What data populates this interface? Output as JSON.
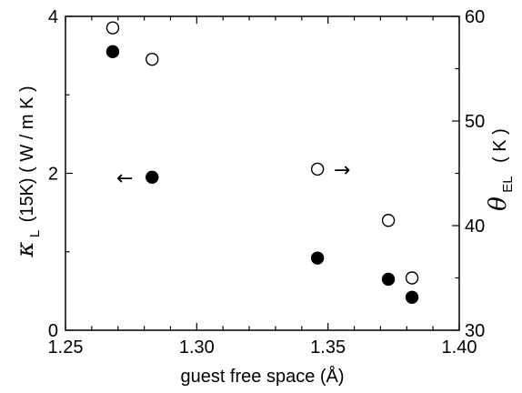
{
  "chart_data": {
    "type": "scatter",
    "x_label": "guest free space (Å)",
    "x_range": [
      1.25,
      1.4
    ],
    "x_ticks": [
      "1.25",
      "1.30",
      "1.35",
      "1.40"
    ],
    "y_left": {
      "symbol": "κ",
      "subscript": "L",
      "label_rest": "(15K) ( W / m K )",
      "range": [
        0,
        4
      ],
      "ticks": [
        "0",
        "2",
        "4"
      ]
    },
    "y_right": {
      "symbol": "θ",
      "subscript": "EL",
      "label_rest": "( K )",
      "range": [
        30,
        60
      ],
      "ticks": [
        "30",
        "40",
        "50",
        "60"
      ]
    },
    "series": [
      {
        "marker": "filled-circle",
        "axis": "left",
        "points": [
          {
            "x": 1.268,
            "y": 3.55
          },
          {
            "x": 1.283,
            "y": 1.95
          },
          {
            "x": 1.346,
            "y": 0.92
          },
          {
            "x": 1.373,
            "y": 0.65
          },
          {
            "x": 1.382,
            "y": 0.42
          }
        ]
      },
      {
        "marker": "open-circle",
        "axis": "right",
        "points": [
          {
            "x": 1.268,
            "y": 58.9
          },
          {
            "x": 1.283,
            "y": 55.9
          },
          {
            "x": 1.346,
            "y": 45.4
          },
          {
            "x": 1.373,
            "y": 40.5
          },
          {
            "x": 1.382,
            "y": 35.0
          }
        ]
      }
    ],
    "annotations": [
      {
        "text": "←",
        "refers_to": "left"
      },
      {
        "text": "→",
        "refers_to": "right"
      }
    ]
  },
  "colors": {
    "marker_fill": "#000000",
    "axis": "#000000",
    "background": "#ffffff"
  }
}
